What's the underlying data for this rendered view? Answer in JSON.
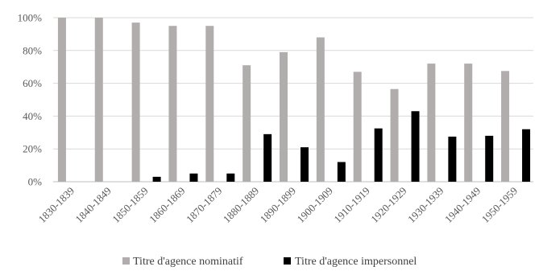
{
  "chart_data": {
    "type": "bar",
    "categories": [
      "1830-1839",
      "1840-1849",
      "1850-1859",
      "1860-1869",
      "1870-1879",
      "1880-1889",
      "1890-1899",
      "1900-1909",
      "1910-1919",
      "1920-1929",
      "1930-1939",
      "1940-1949",
      "1950-1959"
    ],
    "series": [
      {
        "name": "Titre d'agence nominatif",
        "color": "#b2adad",
        "values": [
          100,
          100,
          97,
          95,
          95,
          71,
          79,
          88,
          67,
          56.5,
          72,
          72,
          67.5
        ]
      },
      {
        "name": "Titre d'agence impersonnel",
        "color": "#000000",
        "values": [
          0,
          0,
          3,
          5,
          5,
          29,
          21,
          12,
          32.5,
          43,
          27.5,
          28,
          32
        ]
      }
    ],
    "yticks": [
      "0%",
      "20%",
      "40%",
      "60%",
      "80%",
      "100%"
    ],
    "ylim": [
      0,
      100
    ],
    "grid": true,
    "legend": "bottom"
  }
}
